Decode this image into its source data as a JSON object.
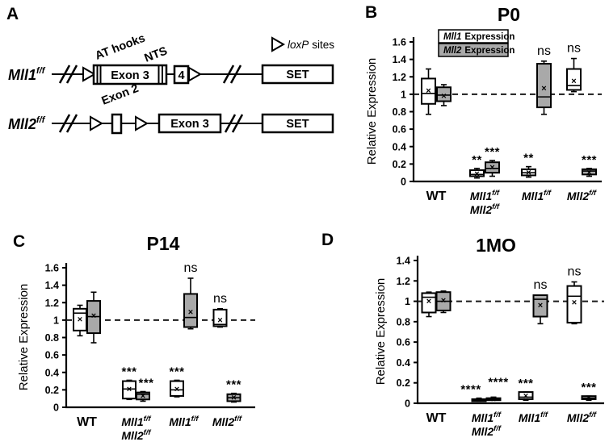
{
  "figure": {
    "background": "#ffffff",
    "gray_fill": "#a9a9a9",
    "stroke_color": "#000000"
  },
  "panelA": {
    "label": "A",
    "loxp_legend": {
      "gene": "loxP",
      "rest": "sites"
    },
    "row1": {
      "gene": "Mll1",
      "sup": "f/f",
      "at_hooks": "AT hooks",
      "nts": "NTS",
      "exon3": "Exon 3",
      "exon4": "4",
      "set": "SET"
    },
    "row2": {
      "gene": "Mll2",
      "sup": "f/f",
      "exon2": "Exon 2",
      "exon3": "Exon 3",
      "set": "SET"
    }
  },
  "chart_data": [
    {
      "type": "box",
      "panel_label": "B",
      "title": "P0",
      "ylabel": "Relative Expression",
      "ylim": [
        0,
        1.6
      ],
      "ytick_labels": [
        "0",
        "0.2",
        "0.4",
        "0.6",
        "0.8",
        "1",
        "1.2",
        "1.4",
        "1.6"
      ],
      "dashed_line_y": 1,
      "grid": false,
      "legend": {
        "position": "top-left",
        "items": [
          {
            "gene": "Mll1",
            "rest": "Expression",
            "fill": "#ffffff"
          },
          {
            "gene": "Mll2",
            "rest": "Expression",
            "fill": "#a9a9a9"
          }
        ]
      },
      "categories": [
        {
          "id": "wt",
          "italic": false,
          "lines": [
            {
              "base": "WT",
              "sup": ""
            }
          ]
        },
        {
          "id": "mll1ff-mll2ff",
          "italic": true,
          "lines": [
            {
              "base": "Mll1",
              "sup": "f/f"
            },
            {
              "base": "Mll2",
              "sup": "f/f"
            }
          ]
        },
        {
          "id": "mll1ff",
          "italic": true,
          "lines": [
            {
              "base": "Mll1",
              "sup": "f/f"
            }
          ]
        },
        {
          "id": "mll2ff",
          "italic": true,
          "lines": [
            {
              "base": "Mll2",
              "sup": "f/f"
            }
          ]
        }
      ],
      "series": [
        {
          "name": "Mll1 Expression",
          "fill": "#ffffff",
          "boxes": [
            {
              "lo": 0.77,
              "q1": 0.89,
              "med": 1.01,
              "q3": 1.18,
              "hi": 1.29,
              "mean": 1.04,
              "sig": ""
            },
            {
              "lo": 0.04,
              "q1": 0.06,
              "med": 0.08,
              "q3": 0.13,
              "hi": 0.15,
              "mean": 0.09,
              "sig": "**"
            },
            {
              "lo": 0.05,
              "q1": 0.07,
              "med": 0.1,
              "q3": 0.14,
              "hi": 0.17,
              "mean": 0.1,
              "sig": "**"
            },
            {
              "lo": 1.03,
              "q1": 1.05,
              "med": 1.1,
              "q3": 1.29,
              "hi": 1.41,
              "mean": 1.15,
              "sig": "ns"
            }
          ]
        },
        {
          "name": "Mll2 Expression",
          "fill": "#a9a9a9",
          "boxes": [
            {
              "lo": 0.87,
              "q1": 0.92,
              "med": 0.99,
              "q3": 1.08,
              "hi": 1.11,
              "mean": 0.98,
              "sig": ""
            },
            {
              "lo": 0.06,
              "q1": 0.1,
              "med": 0.15,
              "q3": 0.22,
              "hi": 0.24,
              "mean": 0.16,
              "sig": "***"
            },
            {
              "lo": 0.77,
              "q1": 0.85,
              "med": 0.97,
              "q3": 1.35,
              "hi": 1.38,
              "mean": 1.07,
              "sig": "ns"
            },
            {
              "lo": 0.06,
              "q1": 0.08,
              "med": 0.12,
              "q3": 0.14,
              "hi": 0.15,
              "mean": 0.1,
              "sig": "***"
            }
          ]
        }
      ]
    },
    {
      "type": "box",
      "panel_label": "C",
      "title": "P14",
      "ylabel": "Relative Expression",
      "ylim": [
        0,
        1.6
      ],
      "ytick_labels": [
        "0",
        "0.2",
        "0.4",
        "0.6",
        "0.8",
        "1",
        "1.2",
        "1.4",
        "1.6"
      ],
      "dashed_line_y": 1,
      "grid": false,
      "legend": null,
      "categories": [
        {
          "id": "wt",
          "italic": false,
          "lines": [
            {
              "base": "WT",
              "sup": ""
            }
          ]
        },
        {
          "id": "mll1ff-mll2ff",
          "italic": true,
          "lines": [
            {
              "base": "Mll1",
              "sup": "f/f"
            },
            {
              "base": "Mll2",
              "sup": "f/f"
            }
          ]
        },
        {
          "id": "mll1ff",
          "italic": true,
          "lines": [
            {
              "base": "Mll1",
              "sup": "f/f"
            }
          ]
        },
        {
          "id": "mll2ff",
          "italic": true,
          "lines": [
            {
              "base": "Mll2",
              "sup": "f/f"
            }
          ]
        }
      ],
      "series": [
        {
          "name": "Mll1 Expression",
          "fill": "#ffffff",
          "boxes": [
            {
              "lo": 0.82,
              "q1": 0.88,
              "med": 1.08,
              "q3": 1.13,
              "hi": 1.17,
              "mean": 1.01,
              "sig": ""
            },
            {
              "lo": 0.09,
              "q1": 0.1,
              "med": 0.21,
              "q3": 0.3,
              "hi": 0.31,
              "mean": 0.21,
              "sig": "***"
            },
            {
              "lo": 0.12,
              "q1": 0.13,
              "med": 0.2,
              "q3": 0.3,
              "hi": 0.31,
              "mean": 0.21,
              "sig": "***"
            },
            {
              "lo": 0.92,
              "q1": 0.93,
              "med": 0.95,
              "q3": 1.12,
              "hi": 1.13,
              "mean": 1.0,
              "sig": "ns"
            }
          ]
        },
        {
          "name": "Mll2 Expression",
          "fill": "#a9a9a9",
          "boxes": [
            {
              "lo": 0.74,
              "q1": 0.85,
              "med": 1.04,
              "q3": 1.22,
              "hi": 1.32,
              "mean": 1.05,
              "sig": ""
            },
            {
              "lo": 0.07,
              "q1": 0.09,
              "med": 0.15,
              "q3": 0.17,
              "hi": 0.18,
              "mean": 0.13,
              "sig": "***",
              "sig_dx": 4
            },
            {
              "lo": 0.9,
              "q1": 0.92,
              "med": 1.03,
              "q3": 1.3,
              "hi": 1.48,
              "mean": 1.09,
              "sig": "ns"
            },
            {
              "lo": 0.06,
              "q1": 0.07,
              "med": 0.11,
              "q3": 0.15,
              "hi": 0.16,
              "mean": 0.11,
              "sig": "***"
            }
          ]
        }
      ]
    },
    {
      "type": "box",
      "panel_label": "D",
      "title": "1MO",
      "ylabel": "Relative Expression",
      "ylim": [
        0,
        1.4
      ],
      "ytick_labels": [
        "0",
        "0.2",
        "0.4",
        "0.6",
        "0.8",
        "1",
        "1.2",
        "1.4"
      ],
      "dashed_line_y": 1,
      "grid": false,
      "legend": null,
      "categories": [
        {
          "id": "wt",
          "italic": false,
          "lines": [
            {
              "base": "WT",
              "sup": ""
            }
          ]
        },
        {
          "id": "mll1ff-mll2ff",
          "italic": true,
          "lines": [
            {
              "base": "Mll1",
              "sup": "f/f"
            },
            {
              "base": "Mll2",
              "sup": "f/f"
            }
          ]
        },
        {
          "id": "mll1ff",
          "italic": true,
          "lines": [
            {
              "base": "Mll1",
              "sup": "f/f"
            }
          ]
        },
        {
          "id": "mll2ff",
          "italic": true,
          "lines": [
            {
              "base": "Mll2",
              "sup": "f/f"
            }
          ]
        }
      ],
      "series": [
        {
          "name": "Mll1 Expression",
          "fill": "#ffffff",
          "boxes": [
            {
              "lo": 0.85,
              "q1": 0.89,
              "med": 1.04,
              "q3": 1.08,
              "hi": 1.09,
              "mean": 1.0,
              "sig": ""
            },
            {
              "lo": 0.02,
              "q1": 0.02,
              "med": 0.03,
              "q3": 0.04,
              "hi": 0.05,
              "mean": 0.03,
              "sig": "****",
              "sig_dx": -10
            },
            {
              "lo": 0.03,
              "q1": 0.04,
              "med": 0.06,
              "q3": 0.11,
              "hi": 0.11,
              "mean": 0.07,
              "sig": "***"
            },
            {
              "lo": 0.78,
              "q1": 0.79,
              "med": 1.05,
              "q3": 1.15,
              "hi": 1.19,
              "mean": 0.99,
              "sig": "ns"
            }
          ]
        },
        {
          "name": "Mll2 Expression",
          "fill": "#a9a9a9",
          "boxes": [
            {
              "lo": 0.89,
              "q1": 0.91,
              "med": 1.0,
              "q3": 1.09,
              "hi": 1.1,
              "mean": 1.01,
              "sig": ""
            },
            {
              "lo": 0.03,
              "q1": 0.03,
              "med": 0.04,
              "q3": 0.05,
              "hi": 0.06,
              "mean": 0.04,
              "sig": "****",
              "sig_dx": 6,
              "sig_dy": -8
            },
            {
              "lo": 0.78,
              "q1": 0.85,
              "med": 1.02,
              "q3": 1.06,
              "hi": 1.06,
              "mean": 0.96,
              "sig": "ns"
            },
            {
              "lo": 0.03,
              "q1": 0.04,
              "med": 0.05,
              "q3": 0.07,
              "hi": 0.07,
              "mean": 0.05,
              "sig": "***"
            }
          ]
        }
      ]
    }
  ]
}
